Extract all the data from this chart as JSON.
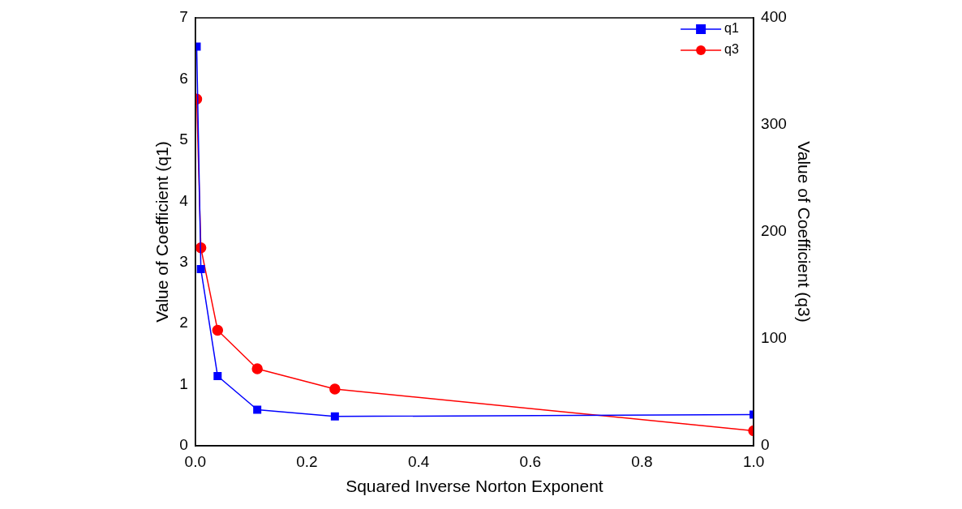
{
  "chart_data": {
    "type": "line",
    "xlabel": "Squared Inverse Norton Exponent",
    "ylabel": "Value of Coefficient (q1)",
    "y2label": "Value of Coefficient (q3)",
    "x": [
      0.0025,
      0.01,
      0.04,
      0.111,
      0.25,
      1.0
    ],
    "series": [
      {
        "name": "q1",
        "color": "#0000ff",
        "marker": "square",
        "values": [
          6.53,
          2.89,
          1.14,
          0.59,
          0.48,
          0.51
        ]
      },
      {
        "name": "q3",
        "color": "#ff0000",
        "marker": "circle",
        "axis": "y2",
        "values": [
          324,
          185,
          108,
          72,
          53,
          14
        ]
      }
    ],
    "xlim": [
      0,
      1
    ],
    "xticks": [
      {
        "value": 0,
        "label": "0.0"
      },
      {
        "value": 0.2,
        "label": "0.2"
      },
      {
        "value": 0.4,
        "label": "0.4"
      },
      {
        "value": 0.6,
        "label": "0.6"
      },
      {
        "value": 0.8,
        "label": "0.8"
      },
      {
        "value": 1,
        "label": "1.0"
      }
    ],
    "ylim": [
      0,
      7
    ],
    "yticks": [
      0,
      1,
      2,
      3,
      4,
      5,
      6,
      7
    ],
    "y2lim": [
      0,
      400
    ],
    "y2ticks": [
      0,
      100,
      200,
      300,
      400
    ],
    "grid": false,
    "legend": "top right",
    "line_style": "solid"
  }
}
